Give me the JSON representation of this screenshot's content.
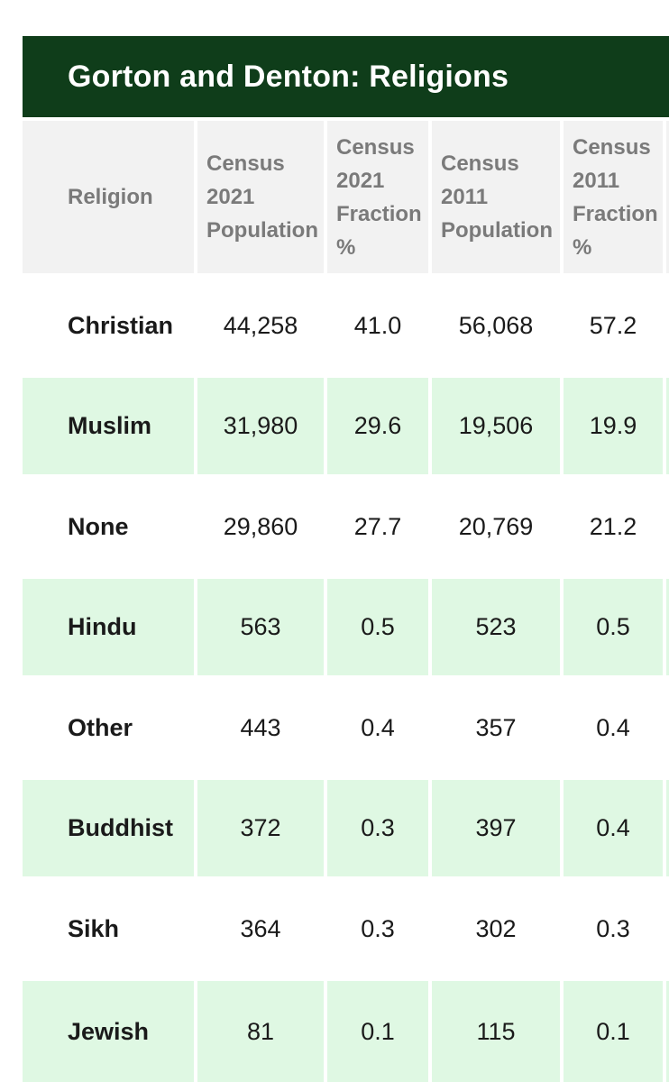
{
  "title": "Gorton and Denton: Religions",
  "headers": [
    "Religion",
    "Census 2021 Population",
    "Census 2021 Fraction %",
    "Census 2011 Population",
    "Census 2011 Fraction %"
  ],
  "rows": [
    {
      "religion": "Christian",
      "pop2021": "44,258",
      "frac2021": "41.0",
      "pop2011": "56,068",
      "frac2011": "57.2"
    },
    {
      "religion": "Muslim",
      "pop2021": "31,980",
      "frac2021": "29.6",
      "pop2011": "19,506",
      "frac2011": "19.9"
    },
    {
      "religion": "None",
      "pop2021": "29,860",
      "frac2021": "27.7",
      "pop2011": "20,769",
      "frac2011": "21.2"
    },
    {
      "religion": "Hindu",
      "pop2021": "563",
      "frac2021": "0.5",
      "pop2011": "523",
      "frac2011": "0.5"
    },
    {
      "religion": "Other",
      "pop2021": "443",
      "frac2021": "0.4",
      "pop2011": "357",
      "frac2011": "0.4"
    },
    {
      "religion": "Buddhist",
      "pop2021": "372",
      "frac2021": "0.3",
      "pop2011": "397",
      "frac2011": "0.4"
    },
    {
      "religion": "Sikh",
      "pop2021": "364",
      "frac2021": "0.3",
      "pop2011": "302",
      "frac2011": "0.3"
    },
    {
      "religion": "Jewish",
      "pop2021": "81",
      "frac2021": "0.1",
      "pop2011": "115",
      "frac2011": "0.1"
    }
  ],
  "colors": {
    "banner": "#0f3d1a",
    "header_bg": "#f2f2f2",
    "stripe": "#dff8e3"
  }
}
